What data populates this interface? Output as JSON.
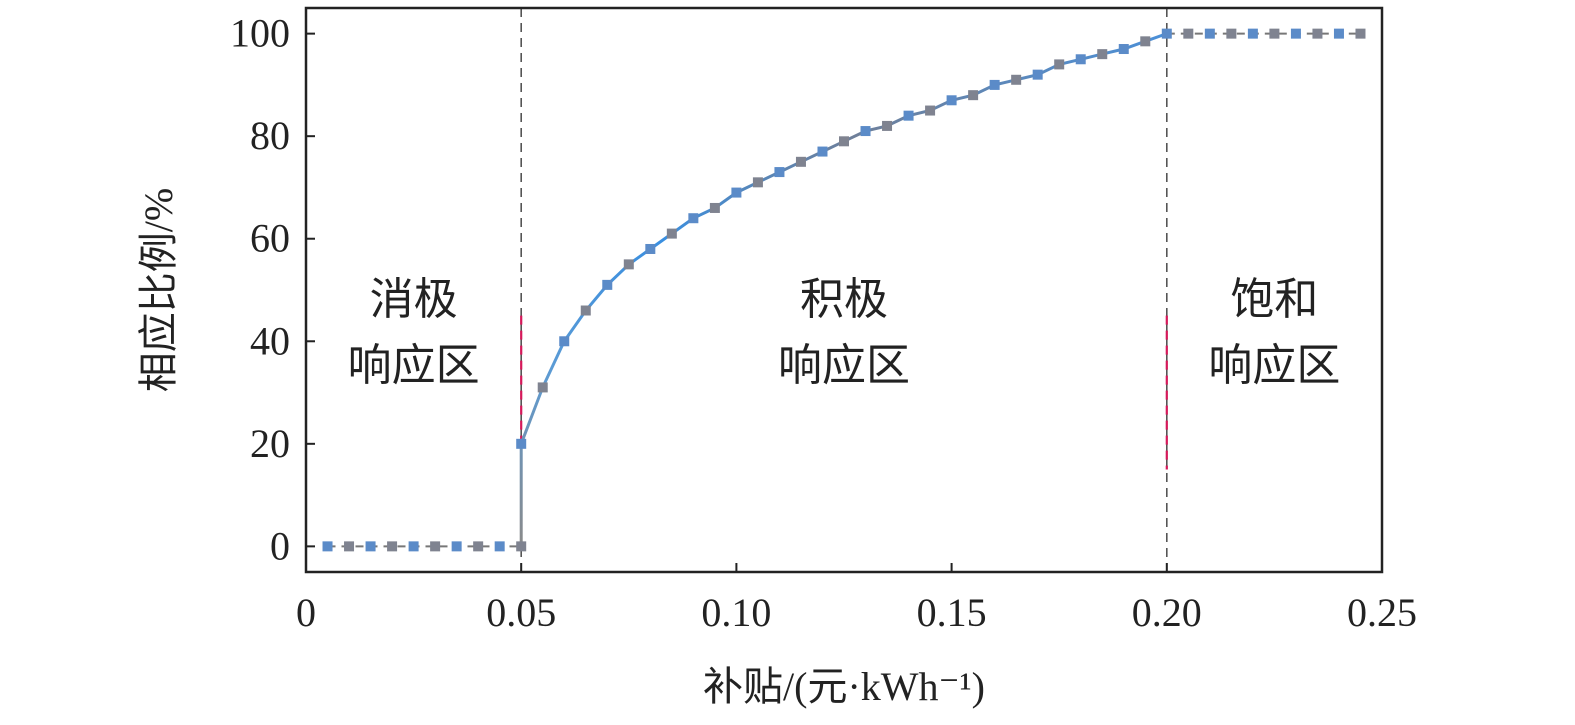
{
  "chart_data": {
    "type": "line",
    "xlabel": "补贴/(元·kWh⁻¹)",
    "ylabel": "相应比例/%",
    "xlim": [
      0,
      0.25
    ],
    "ylim": [
      -5,
      105
    ],
    "xticks": [
      0,
      0.05,
      0.1,
      0.15,
      0.2,
      0.25
    ],
    "xtick_labels": [
      "0",
      "0.05",
      "0.10",
      "0.15",
      "0.20",
      "0.25"
    ],
    "yticks": [
      0,
      20,
      40,
      60,
      80,
      100
    ],
    "ytick_labels": [
      "0",
      "20",
      "40",
      "60",
      "80",
      "100"
    ],
    "grid": false,
    "thresholds": [
      0.05,
      0.2
    ],
    "regions": [
      {
        "lines": [
          "消极",
          "响应区"
        ],
        "x_center": 0.025
      },
      {
        "lines": [
          "积极",
          "响应区"
        ],
        "x_center": 0.125
      },
      {
        "lines": [
          "饱和",
          "响应区"
        ],
        "x_center": 0.225
      }
    ],
    "series": [
      {
        "x": [
          0.005,
          0.01,
          0.015,
          0.02,
          0.025,
          0.03,
          0.035,
          0.04,
          0.045,
          0.05,
          0.05,
          0.055,
          0.06,
          0.065,
          0.07,
          0.075,
          0.08,
          0.085,
          0.09,
          0.095,
          0.1,
          0.105,
          0.11,
          0.115,
          0.12,
          0.125,
          0.13,
          0.135,
          0.14,
          0.145,
          0.15,
          0.155,
          0.16,
          0.165,
          0.17,
          0.175,
          0.18,
          0.185,
          0.19,
          0.195,
          0.2,
          0.205,
          0.21,
          0.215,
          0.22,
          0.225,
          0.23,
          0.235,
          0.24,
          0.245
        ],
        "y": [
          0,
          0,
          0,
          0,
          0,
          0,
          0,
          0,
          0,
          0,
          20,
          31,
          40,
          46,
          51,
          55,
          58,
          61,
          64,
          66,
          69,
          71,
          73,
          75,
          77,
          79,
          81,
          82,
          84,
          85,
          87,
          88,
          90,
          91,
          92,
          94,
          95,
          96,
          97,
          98.5,
          100,
          100,
          100,
          100,
          100,
          100,
          100,
          100,
          100,
          100
        ]
      }
    ],
    "colors": {
      "axis": "#222222",
      "line_dashed": "#777777",
      "line_gradient": [
        "#5b9bd5",
        "#3a8fe0",
        "#8a8a8a"
      ],
      "marker_a": "#5b8bc8",
      "marker_b": "#7f8390",
      "threshold_dash_a": "#555555",
      "threshold_dash_b": "#d6185a"
    }
  }
}
